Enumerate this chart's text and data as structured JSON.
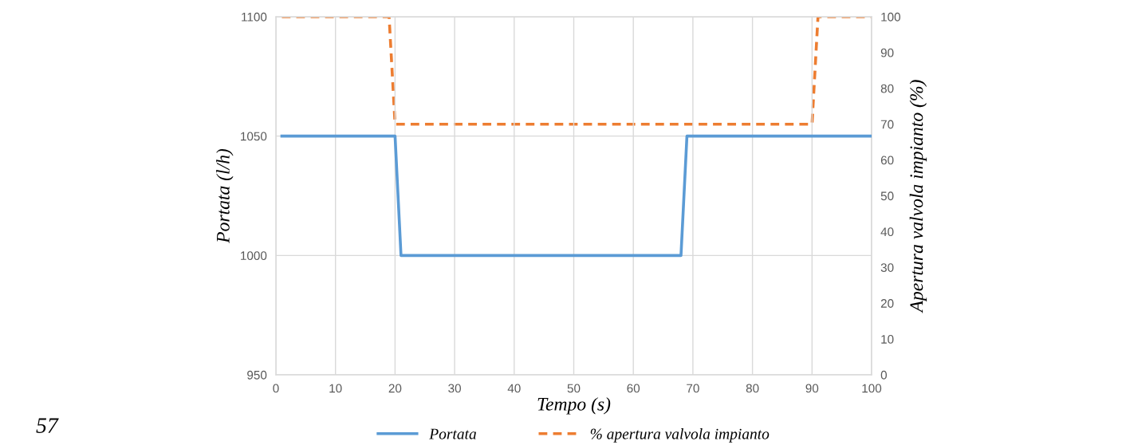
{
  "chart_data": {
    "type": "line",
    "xlabel": "Tempo (s)",
    "ylabel": "Portata (l/h)",
    "y2label": "Apertura valvola impianto (%)",
    "annotations": [
      "57"
    ],
    "series": [
      {
        "name": "Portata",
        "color": "#5b9bd5",
        "x": [
          1,
          20,
          21,
          68,
          69,
          100
        ],
        "values": [
          1050,
          1050,
          1000,
          1000,
          1050,
          1050
        ],
        "line_style": "solid"
      },
      {
        "name": "% apertura valvola impianto",
        "color": "#ed7d31",
        "axis": "y2",
        "x": [
          1,
          19,
          20,
          90,
          91,
          100
        ],
        "values": [
          100,
          100,
          70,
          70,
          100,
          100
        ],
        "line_style": "dashed"
      }
    ],
    "xlim": [
      0,
      100
    ],
    "xticks": [
      0,
      10,
      20,
      30,
      40,
      50,
      60,
      70,
      80,
      90,
      100
    ],
    "ylim": [
      950,
      1100
    ],
    "yticks": [
      950,
      1000,
      1050,
      1100
    ],
    "y2lim": [
      0,
      100
    ],
    "y2ticks": [
      0,
      10,
      20,
      30,
      40,
      50,
      60,
      70,
      80,
      90,
      100
    ],
    "grid": true,
    "legend": "bottom",
    "marker": "none"
  }
}
